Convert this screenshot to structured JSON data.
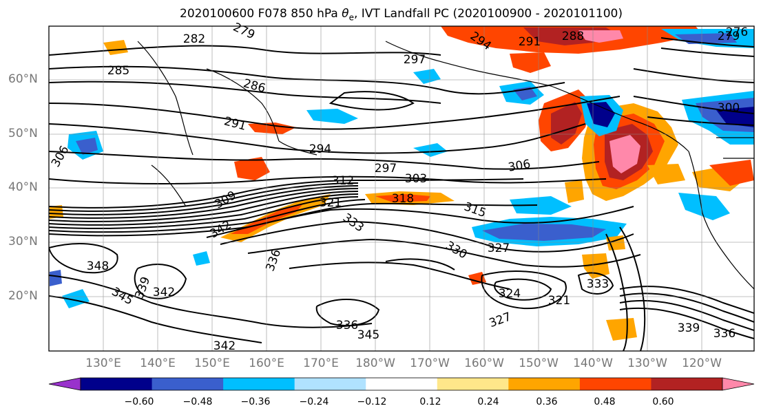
{
  "title": {
    "prefix": "2020100600 F078 850 hPa ",
    "theta_symbol": "θ",
    "theta_sub": "e",
    "suffix": ", IVT Landfall PC (2020100900 - 2020101100)"
  },
  "axes": {
    "lat_labels": [
      "60°N",
      "50°N",
      "40°N",
      "30°N",
      "20°N"
    ],
    "lon_labels": [
      "130°E",
      "140°E",
      "150°E",
      "160°E",
      "170°E",
      "180°W",
      "170°W",
      "160°W",
      "150°W",
      "140°W",
      "130°W",
      "120°W"
    ]
  },
  "colorbar": {
    "ticks": [
      "−0.60",
      "−0.48",
      "−0.36",
      "−0.24",
      "−0.12",
      "0.12",
      "0.24",
      "0.36",
      "0.48",
      "0.60"
    ],
    "colors": [
      "#9932cc",
      "#00008b",
      "#3a5fcd",
      "#00bfff",
      "#b0e2ff",
      "#ffffff",
      "#ffe78a",
      "#ffa500",
      "#ff4500",
      "#b22222",
      "#ff88aa"
    ]
  },
  "contour_labels": [
    "282",
    "279",
    "285",
    "286",
    "291",
    "294",
    "297",
    "303",
    "306",
    "300",
    "288",
    "291",
    "294",
    "297",
    "279",
    "276",
    "309",
    "312",
    "318",
    "315",
    "321",
    "333",
    "342",
    "336",
    "330",
    "327",
    "348",
    "345",
    "342",
    "339",
    "324",
    "321",
    "333",
    "336",
    "345",
    "342",
    "339",
    "336",
    "327",
    "306"
  ]
}
